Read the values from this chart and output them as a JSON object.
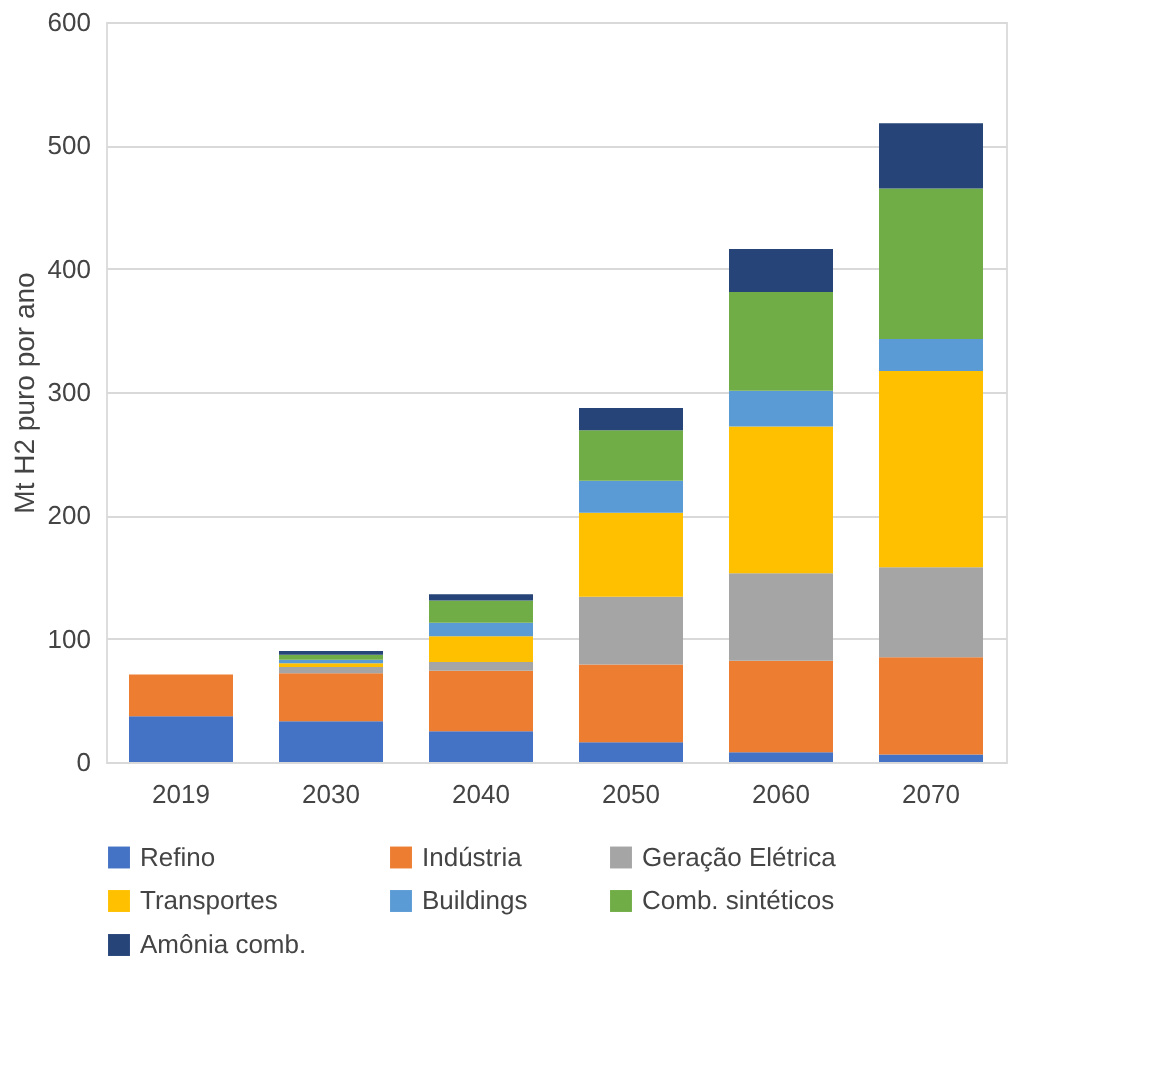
{
  "chart_data": {
    "type": "bar",
    "stacked": true,
    "ylabel": "Mt H2 puro por ano",
    "categories": [
      "2019",
      "2030",
      "2040",
      "2050",
      "2060",
      "2070"
    ],
    "ylim": [
      0,
      600
    ],
    "yticks": [
      0,
      100,
      200,
      300,
      400,
      500,
      600
    ],
    "grid": "y",
    "legend": "bottom",
    "series": [
      {
        "name": "Refino",
        "color": "#4472c4",
        "values": [
          37,
          33,
          25,
          16,
          8,
          6
        ]
      },
      {
        "name": "Indústria",
        "color": "#ed7d31",
        "values": [
          34,
          39,
          49,
          63,
          74,
          79
        ]
      },
      {
        "name": "Geração Elétrica",
        "color": "#a5a5a5",
        "values": [
          0,
          5,
          7,
          55,
          71,
          73
        ]
      },
      {
        "name": "Transportes",
        "color": "#ffc000",
        "values": [
          0,
          3,
          21,
          68,
          119,
          159
        ]
      },
      {
        "name": "Buildings",
        "color": "#5b9bd5",
        "values": [
          0,
          3,
          11,
          26,
          29,
          26
        ]
      },
      {
        "name": "Comb. sintéticos",
        "color": "#70ad47",
        "values": [
          0,
          4,
          18,
          41,
          80,
          122
        ]
      },
      {
        "name": "Amônia comb.",
        "color": "#264478",
        "values": [
          0,
          3,
          5,
          18,
          35,
          53
        ]
      }
    ]
  }
}
